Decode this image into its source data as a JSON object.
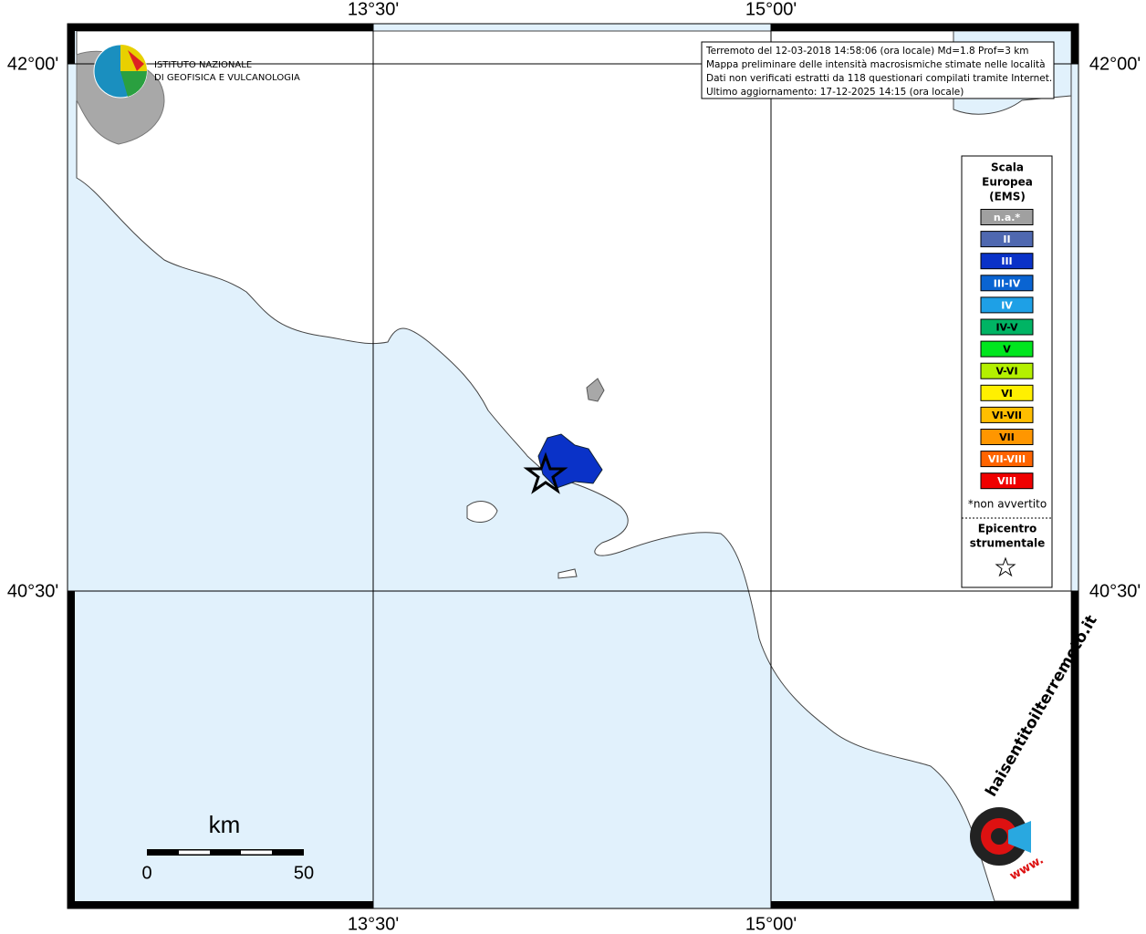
{
  "map": {
    "lon_labels": [
      "13°30'",
      "15°00'"
    ],
    "lat_labels": [
      "42°00'",
      "40°30'"
    ],
    "info": [
      "Terremoto del 12-03-2018 14:58:06 (ora locale) Md=1.8 Prof=3 km",
      "Mappa preliminare delle intensità macrosismiche stimate nelle località",
      "Dati non verificati estratti da 118 questionari compilati tramite Internet.",
      "Ultimo aggiornamento: 17-12-2025 14:15 (ora locale)"
    ],
    "logo": [
      "ISTITUTO NAZIONALE",
      "DI GEOFISICA E VULCANOLOGIA"
    ],
    "legend": {
      "title": [
        "Scala",
        "Europea",
        "(EMS)"
      ],
      "items": [
        {
          "label": "n.a.*",
          "color": "#a0a0a0"
        },
        {
          "label": "II",
          "color": "#4f68b0"
        },
        {
          "label": "III",
          "color": "#0a32c8"
        },
        {
          "label": "III-IV",
          "color": "#0a64d2"
        },
        {
          "label": "IV",
          "color": "#1ea0e6"
        },
        {
          "label": "IV-V",
          "color": "#00b464"
        },
        {
          "label": "V",
          "color": "#00e61e"
        },
        {
          "label": "V-VI",
          "color": "#b4f000"
        },
        {
          "label": "VI",
          "color": "#fff000"
        },
        {
          "label": "VI-VII",
          "color": "#ffbe00"
        },
        {
          "label": "VII",
          "color": "#ff9600"
        },
        {
          "label": "VII-VIII",
          "color": "#ff6400"
        },
        {
          "label": "VIII",
          "color": "#f00000"
        }
      ],
      "note": "*non avvertito",
      "epicentre": [
        "Epicentro",
        "strumentale"
      ]
    },
    "scale": {
      "unit": "km",
      "labels": [
        "0",
        "50"
      ]
    },
    "badge": [
      "haisentitoilterremoto.it",
      "www."
    ]
  }
}
